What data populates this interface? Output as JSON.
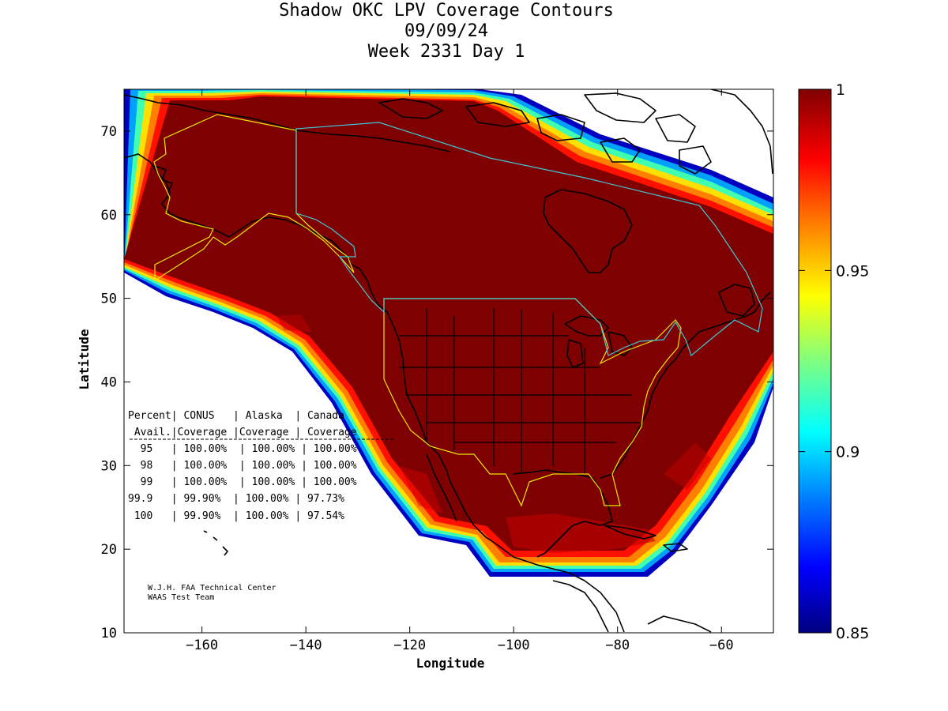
{
  "title_lines": [
    "Shadow OKC LPV Coverage Contours",
    "09/09/24",
    "Week 2331 Day 1"
  ],
  "axes": {
    "xlabel": "Longitude",
    "ylabel": "Latitude",
    "xlim": [
      -175,
      -50
    ],
    "ylim": [
      10,
      75
    ],
    "xticks": [
      -160,
      -140,
      -120,
      -100,
      -80,
      -60
    ],
    "yticks": [
      10,
      20,
      30,
      40,
      50,
      60,
      70
    ]
  },
  "colorbar": {
    "range": [
      0.85,
      1
    ],
    "ticks": [
      "1",
      "0.95",
      "0.9",
      "0.85"
    ],
    "colors": [
      "#000080",
      "#0000ff",
      "#0080ff",
      "#00ffff",
      "#80ff80",
      "#ffff00",
      "#ff8000",
      "#ff0000",
      "#800000"
    ]
  },
  "colors": {
    "coverage_fill": "#7f0000",
    "us_boundary": "#e8e800",
    "canada_boundary": "#40c8d8"
  },
  "table": {
    "header1": "Percent| CONUS   | Alaska  | Canada",
    "header2": " Avail.|Coverage |Coverage | Coverage",
    "rows": [
      "  95   | 100.00%  | 100.00% | 100.00%",
      "  98   | 100.00%  | 100.00% | 100.00%",
      "  99   | 100.00%  | 100.00% | 100.00%",
      "99.9   | 99.90%  | 100.00% | 97.73%",
      " 100   | 99.90%  | 100.00% | 97.54%"
    ]
  },
  "credit": [
    "W.J.H. FAA Technical Center",
    "WAAS Test Team"
  ]
}
